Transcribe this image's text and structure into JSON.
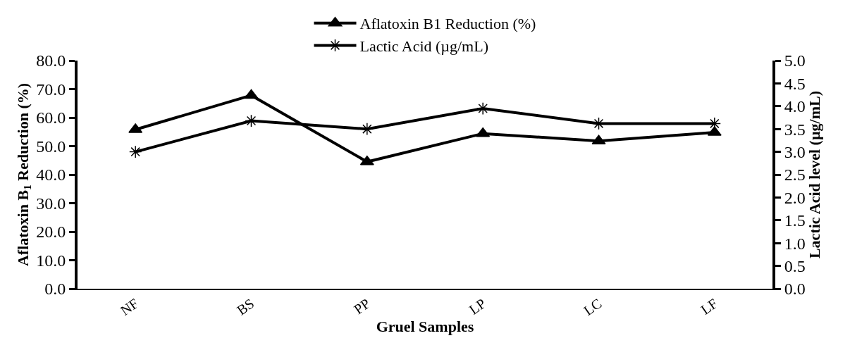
{
  "chart_data": {
    "type": "line",
    "xlabel": "Gruel Samples",
    "ylabel": "Aflatoxin B$_{1}$ Reduction (%)",
    "y2label": "Lactic Acid level (µg/mL)",
    "categories": [
      "NF",
      "BS",
      "PP",
      "LP",
      "LC",
      "LF"
    ],
    "series": [
      {
        "name": "Aflatoxin B1 Reduction (%)",
        "color": "#000000",
        "marker": "triangle",
        "values": [
          55.8,
          67.8,
          44.5,
          54.4,
          51.8,
          54.8
        ]
      },
      {
        "name": "Lactic Acid (µg/mL)",
        "color": "#000000",
        "marker": "cross",
        "axis": "y2",
        "values": [
          3.0,
          3.68,
          3.5,
          3.95,
          3.62,
          3.62
        ]
      }
    ],
    "ylim": [
      0,
      80
    ],
    "yticks": [
      {
        "value": 0,
        "label": "0.0"
      },
      {
        "value": 10,
        "label": "10.0"
      },
      {
        "value": 20,
        "label": "20.0"
      },
      {
        "value": 30,
        "label": "30.0"
      },
      {
        "value": 40,
        "label": "40.0"
      },
      {
        "value": 50,
        "label": "50.0"
      },
      {
        "value": 60,
        "label": "60.0"
      },
      {
        "value": 70,
        "label": "70.0"
      },
      {
        "value": 80,
        "label": "80.0"
      }
    ],
    "y2lim": [
      0,
      5
    ],
    "y2ticks": [
      {
        "value": 0,
        "label": "0.0"
      },
      {
        "value": 0.5,
        "label": "0.5"
      },
      {
        "value": 1,
        "label": "1.0"
      },
      {
        "value": 1.5,
        "label": "1.5"
      },
      {
        "value": 2,
        "label": "2.0"
      },
      {
        "value": 2.5,
        "label": "2.5"
      },
      {
        "value": 3,
        "label": "3.0"
      },
      {
        "value": 3.5,
        "label": "3.5"
      },
      {
        "value": 4,
        "label": "4.0"
      },
      {
        "value": 4.5,
        "label": "4.5"
      },
      {
        "value": 5,
        "label": "5.0"
      }
    ],
    "legend": "top",
    "line_style": "solid"
  }
}
